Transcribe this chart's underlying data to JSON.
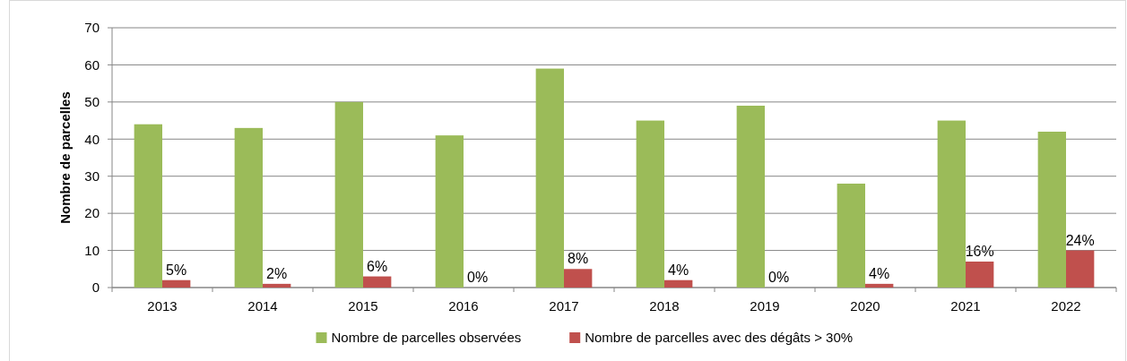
{
  "chart_data": {
    "type": "bar",
    "ylabel": "Nombre de parcelles",
    "categories": [
      "2013",
      "2014",
      "2015",
      "2016",
      "2017",
      "2018",
      "2019",
      "2020",
      "2021",
      "2022"
    ],
    "series": [
      {
        "name": "Nombre de parcelles observées",
        "color": "#9bbb59",
        "values": [
          44,
          43,
          50,
          41,
          59,
          45,
          49,
          28,
          45,
          42
        ]
      },
      {
        "name": "Nombre de parcelles avec des dégâts > 30%",
        "color": "#c0504d",
        "values": [
          2,
          1,
          3,
          0,
          5,
          2,
          0,
          1,
          7,
          10
        ]
      }
    ],
    "annotations": [
      {
        "text": "5%",
        "x": "2013",
        "y": 2
      },
      {
        "text": "2%",
        "x": "2014",
        "y": 1
      },
      {
        "text": "6%",
        "x": "2015",
        "y": 3
      },
      {
        "text": "0%",
        "x": "2016",
        "y": 0
      },
      {
        "text": "8%",
        "x": "2017",
        "y": 5
      },
      {
        "text": "4%",
        "x": "2018",
        "y": 2
      },
      {
        "text": "0%",
        "x": "2019",
        "y": 0
      },
      {
        "text": "4%",
        "x": "2020",
        "y": 1
      },
      {
        "text": "16%",
        "x": "2021",
        "y": 7
      },
      {
        "text": "24%",
        "x": "2022",
        "y": 10
      }
    ],
    "ylim": [
      0,
      70
    ],
    "yticks": [
      0,
      10,
      20,
      30,
      40,
      50,
      60,
      70
    ],
    "grid": "y",
    "legend": "bottom"
  }
}
